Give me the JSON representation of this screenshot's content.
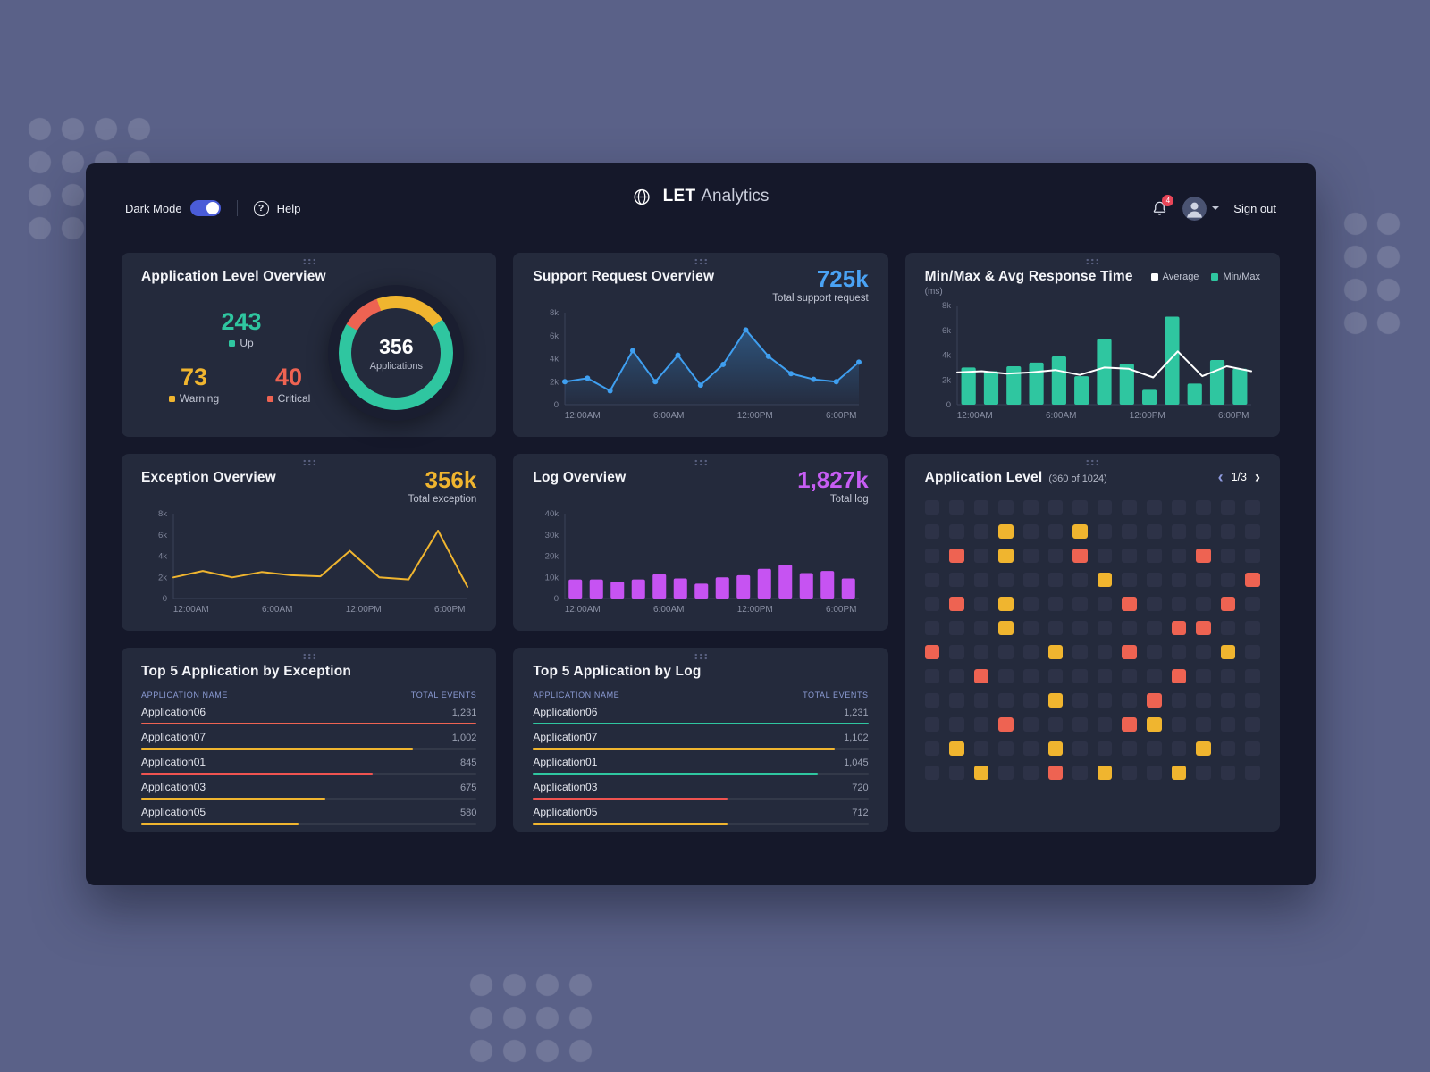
{
  "header": {
    "dark_mode_label": "Dark Mode",
    "help_label": "Help",
    "brand_bold": "LET",
    "brand_light": "Analytics",
    "notification_count": "4",
    "sign_out_label": "Sign out"
  },
  "colors": {
    "accent_blue": "#4aa3f5",
    "accent_teal": "#2fc6a0",
    "accent_yellow": "#f0b52f",
    "accent_orange": "#ee6352",
    "accent_purple": "#c65df3",
    "legend_white": "#ffffff"
  },
  "cards": {
    "app_overview": {
      "title": "Application Level Overview",
      "up_value": "243",
      "up_label": "Up",
      "warning_value": "73",
      "warning_label": "Warning",
      "critical_value": "40",
      "critical_label": "Critical",
      "center_value": "356",
      "center_label": "Applications"
    },
    "support": {
      "title": "Support Request Overview",
      "stat": "725k",
      "caption": "Total support request"
    },
    "minmax": {
      "title": "Min/Max & Avg Response Time",
      "unit": "(ms)",
      "legend_avg": "Average",
      "legend_minmax": "Min/Max"
    },
    "exception": {
      "title": "Exception Overview",
      "stat": "356k",
      "caption": "Total exception"
    },
    "log": {
      "title": "Log Overview",
      "stat": "1,827k",
      "caption": "Total log"
    },
    "app_level": {
      "title": "Application Level",
      "subtitle": "(360 of 1024)",
      "page": "1/3"
    },
    "top_exception": {
      "title": "Top 5 Application by Exception",
      "col_name": "APPLICATION NAME",
      "col_events": "TOTAL EVENTS",
      "rows": [
        {
          "name": "Application06",
          "events": "1,231",
          "pct": 100,
          "color": "#ee6352"
        },
        {
          "name": "Application07",
          "events": "1,002",
          "pct": 81,
          "color": "#f0b52f"
        },
        {
          "name": "Application01",
          "events": "845",
          "pct": 69,
          "color": "#ef5350"
        },
        {
          "name": "Application03",
          "events": "675",
          "pct": 55,
          "color": "#f0b52f"
        },
        {
          "name": "Application05",
          "events": "580",
          "pct": 47,
          "color": "#f0b52f"
        }
      ]
    },
    "top_log": {
      "title": "Top 5 Application by Log",
      "col_name": "APPLICATION NAME",
      "col_events": "TOTAL EVENTS",
      "rows": [
        {
          "name": "Application06",
          "events": "1,231",
          "pct": 100,
          "color": "#2fc6a0"
        },
        {
          "name": "Application07",
          "events": "1,102",
          "pct": 90,
          "color": "#f0b52f"
        },
        {
          "name": "Application01",
          "events": "1,045",
          "pct": 85,
          "color": "#2fc6a0"
        },
        {
          "name": "Application03",
          "events": "720",
          "pct": 58,
          "color": "#ef5350"
        },
        {
          "name": "Application05",
          "events": "712",
          "pct": 58,
          "color": "#f0b52f"
        }
      ]
    }
  },
  "heatmap": {
    "cell_colors": {
      "d": "#2d3247",
      "y": "#f0b52f",
      "o": "#ee6352"
    },
    "rows": [
      "..............",
      "...y..y.......",
      ".o.y..o....o..",
      ".......y.....o",
      ".o.y....o...o.",
      "...y......oo..",
      "o....y..o...y.",
      "..o.......o...",
      ".....y...o....",
      "...o....oy....",
      ".y...y.....y..",
      "..y..o.y..y..."
    ]
  },
  "chart_data": [
    {
      "id": "applications_donut",
      "type": "pie",
      "title": "Application Level Overview",
      "start_angle": -60,
      "segments": [
        {
          "label": "Critical",
          "value": 40,
          "color": "#ee6352"
        },
        {
          "label": "Warning",
          "value": 73,
          "color": "#f0b52f"
        },
        {
          "label": "Up",
          "value": 243,
          "color": "#2fc6a0"
        }
      ],
      "center_value": "356",
      "center_label": "Applications"
    },
    {
      "id": "support_requests",
      "type": "area",
      "title": "Support Request Overview",
      "total": "725k",
      "x_labels": [
        "12:00AM",
        "6:00AM",
        "12:00PM",
        "6:00PM"
      ],
      "values": [
        2000,
        2300,
        1200,
        4700,
        2000,
        4300,
        1700,
        3500,
        6500,
        4200,
        2700,
        2200,
        2000,
        3700
      ],
      "yticks": [
        "0",
        "2k",
        "4k",
        "6k",
        "8k"
      ],
      "ylim": [
        0,
        8000
      ],
      "color": "#3f9ff0",
      "dots": true
    },
    {
      "id": "response_time",
      "type": "combo",
      "title": "Min/Max & Avg Response Time",
      "unit": "ms",
      "x_labels": [
        "12:00AM",
        "6:00AM",
        "12:00PM",
        "6:00PM"
      ],
      "series": [
        {
          "name": "Min/Max",
          "kind": "bar",
          "color": "#2fc6a0",
          "values": [
            3000,
            2700,
            3100,
            3400,
            3900,
            2300,
            5300,
            3300,
            1200,
            7100,
            1700,
            3600,
            2900
          ]
        },
        {
          "name": "Average",
          "kind": "line",
          "color": "#ffffff",
          "values": [
            2600,
            2700,
            2500,
            2600,
            2800,
            2400,
            3000,
            2900,
            2200,
            4300,
            2300,
            3100,
            2700
          ]
        }
      ],
      "yticks": [
        "0",
        "2k",
        "4k",
        "6k",
        "8k"
      ],
      "ylim": [
        0,
        8000
      ]
    },
    {
      "id": "exceptions",
      "type": "line",
      "title": "Exception Overview",
      "total": "356k",
      "x_labels": [
        "12:00AM",
        "6:00AM",
        "12:00PM",
        "6:00PM"
      ],
      "values": [
        2000,
        2600,
        2000,
        2500,
        2200,
        2100,
        4500,
        2000,
        1800,
        6400,
        1100
      ],
      "yticks": [
        "0",
        "2k",
        "4k",
        "6k",
        "8k"
      ],
      "ylim": [
        0,
        8000
      ],
      "color": "#f0b52f"
    },
    {
      "id": "logs",
      "type": "bar",
      "title": "Log Overview",
      "total": "1,827k",
      "x_labels": [
        "12:00AM",
        "6:00AM",
        "12:00PM",
        "6:00PM"
      ],
      "values": [
        9000,
        9000,
        8000,
        9000,
        11500,
        9500,
        7000,
        10000,
        11000,
        14000,
        16000,
        12000,
        13000,
        9500
      ],
      "yticks": [
        "0",
        "10k",
        "20k",
        "30k",
        "40k"
      ],
      "ylim": [
        0,
        40000
      ],
      "color": "#c653f2"
    }
  ]
}
